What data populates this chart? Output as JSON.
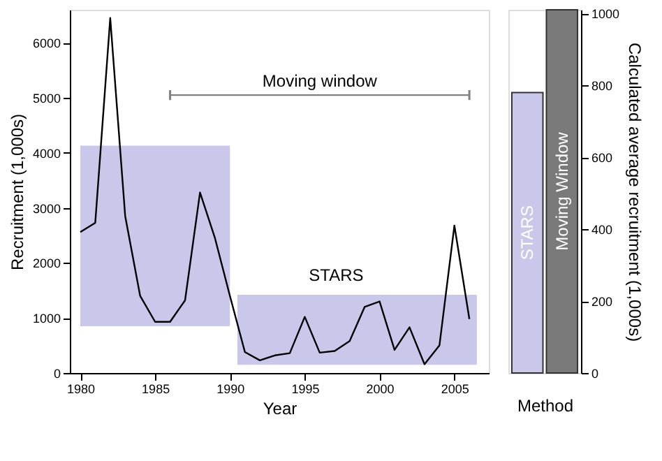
{
  "chart_data": [
    {
      "type": "line",
      "xlabel": "Year",
      "ylabel": "Recruitment (1,000s)",
      "x": [
        1980,
        1981,
        1982,
        1983,
        1984,
        1985,
        1986,
        1987,
        1988,
        1989,
        1990,
        1991,
        1992,
        1993,
        1994,
        1995,
        1996,
        1997,
        1998,
        1999,
        2000,
        2001,
        2002,
        2003,
        2004,
        2005,
        2006
      ],
      "series": [
        {
          "type": "area",
          "x": [
            1980,
            1990
          ],
          "values": [
            null,
            null
          ],
          "upper": [
            4130,
            4130
          ],
          "lower": [
            850,
            850
          ],
          "color": "#c9c8ea"
        },
        {
          "type": "area",
          "x": [
            1990.5,
            2006.5
          ],
          "values": [
            null,
            null
          ],
          "upper": [
            1420,
            1420
          ],
          "lower": [
            150,
            150
          ],
          "color": "#c9c8ea"
        },
        {
          "color": "#000000",
          "values": [
            2560,
            2730,
            6450,
            2850,
            1400,
            930,
            930,
            1320,
            3280,
            2450,
            1400,
            380,
            230,
            320,
            360,
            1020,
            370,
            400,
            580,
            1200,
            1300,
            420,
            830,
            160,
            500,
            2680,
            980
          ]
        },
        {
          "type": "line",
          "name": "Moving window",
          "x": [
            1986,
            2006
          ],
          "values": [
            5050,
            5050
          ],
          "errors": [
            90,
            90
          ],
          "color": "#808080"
        }
      ],
      "annotations": [
        "STARS"
      ],
      "xlim": [
        1979.3,
        2007.3
      ],
      "xticks": [
        1980,
        1985,
        1990,
        1995,
        2000,
        2005
      ],
      "ylim": [
        0,
        6600
      ],
      "yticks": [
        0,
        1000,
        2000,
        3000,
        4000,
        5000,
        6000
      ],
      "grid": false,
      "legend": false
    },
    {
      "type": "bar",
      "xlabel": "Method",
      "ylabel": "Calculated average recruitment (1,000s)",
      "categories": [
        "STARS",
        "Moving Window"
      ],
      "values": [
        780,
        1010
      ],
      "colors": [
        "#c9c8ea",
        "#7a7a7a"
      ],
      "ylim": [
        0,
        1010
      ],
      "yticks": [
        0,
        200,
        400,
        600,
        800,
        1000
      ],
      "grid": false,
      "legend": false
    }
  ]
}
